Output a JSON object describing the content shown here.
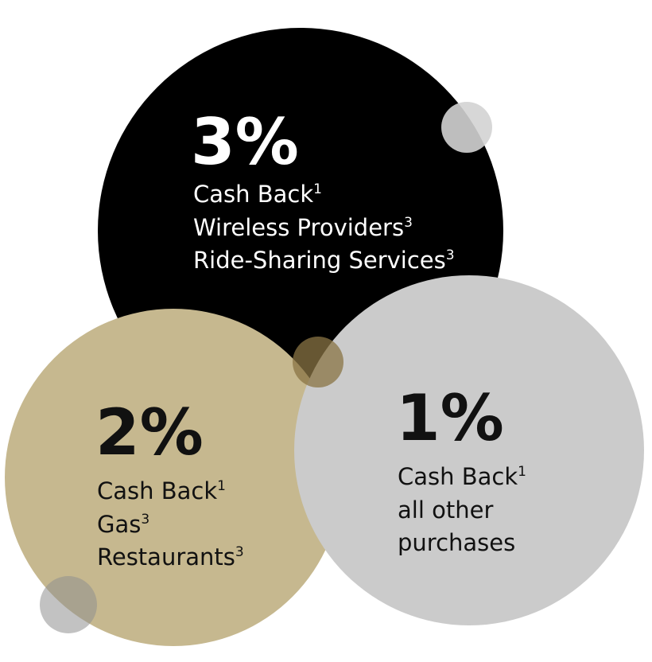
{
  "offers": [
    {
      "rate": "3%",
      "lines": [
        {
          "text": "Cash Back",
          "sup": "1"
        },
        {
          "text": "Wireless Providers",
          "sup": "3"
        },
        {
          "text": "Ride-Sharing Services",
          "sup": "3"
        }
      ]
    },
    {
      "rate": "2%",
      "lines": [
        {
          "text": "Cash Back",
          "sup": "1"
        },
        {
          "text": "Gas",
          "sup": "3"
        },
        {
          "text": "Restaurants",
          "sup": "3"
        }
      ]
    },
    {
      "rate": "1%",
      "lines": [
        {
          "text": "Cash Back",
          "sup": "1"
        },
        {
          "text": "all other"
        },
        {
          "text": "purchases"
        }
      ]
    }
  ]
}
